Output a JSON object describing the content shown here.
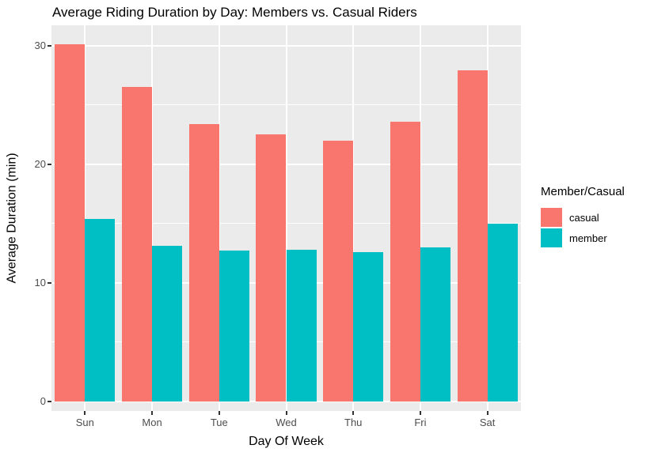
{
  "chart_data": {
    "type": "bar",
    "title": "Average Riding Duration by Day: Members vs. Casual Riders",
    "xlabel": "Day Of Week",
    "ylabel": "Average Duration (min)",
    "categories": [
      "Sun",
      "Mon",
      "Tue",
      "Wed",
      "Thu",
      "Fri",
      "Sat"
    ],
    "series": [
      {
        "name": "casual",
        "color": "#F8766D",
        "values": [
          30.1,
          26.5,
          23.4,
          22.5,
          22.0,
          23.6,
          27.9
        ]
      },
      {
        "name": "member",
        "color": "#00BFC4",
        "values": [
          15.4,
          13.1,
          12.7,
          12.8,
          12.6,
          13.0,
          15.0
        ]
      }
    ],
    "legend_title": "Member/Casual",
    "legend_position": "right",
    "ylim": [
      -0.8,
      31.7
    ],
    "yticks": [
      0,
      10,
      20,
      30
    ],
    "minor_yticks": [
      5,
      15,
      25
    ],
    "grid": true,
    "bar_group_fraction": 0.9,
    "colors": {
      "panel_background": "#EBEBEB",
      "gridline": "#FFFFFF",
      "axis_text": "#4D4D4D",
      "tick_mark": "#333333",
      "title_text": "#000000"
    }
  }
}
